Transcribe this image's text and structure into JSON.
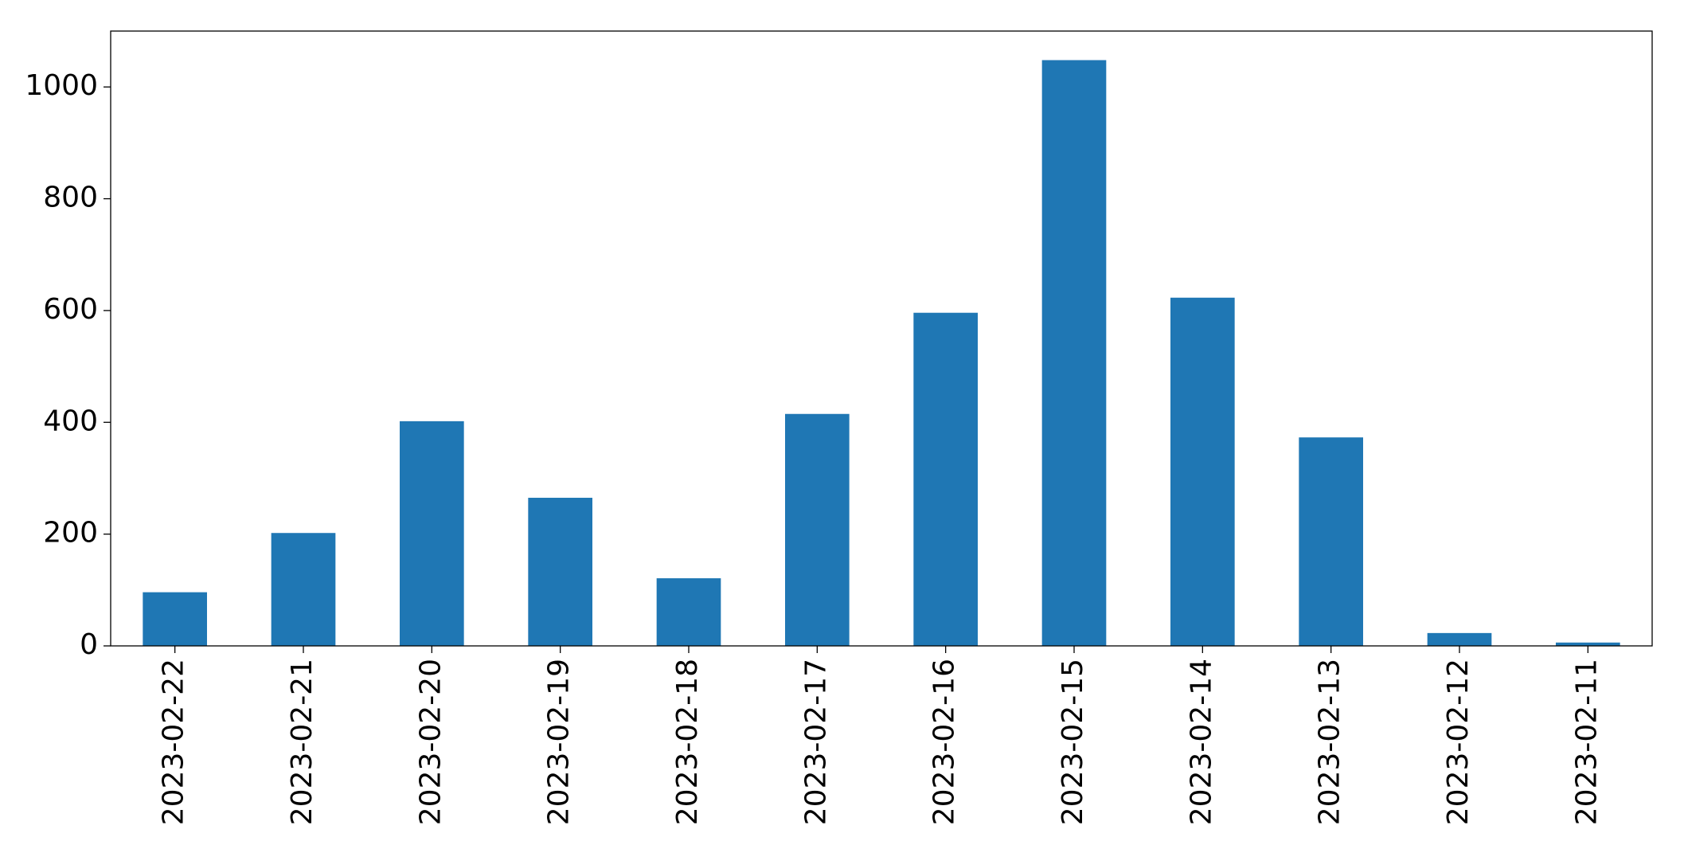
{
  "chart_data": {
    "type": "bar",
    "categories": [
      "2023-02-22",
      "2023-02-21",
      "2023-02-20",
      "2023-02-19",
      "2023-02-18",
      "2023-02-17",
      "2023-02-16",
      "2023-02-15",
      "2023-02-14",
      "2023-02-13",
      "2023-02-12",
      "2023-02-11"
    ],
    "values": [
      96,
      202,
      402,
      265,
      121,
      415,
      596,
      1048,
      623,
      373,
      23,
      6
    ],
    "color": "#1f77b4",
    "ylim": [
      0,
      1100
    ],
    "yticks": [
      0,
      200,
      400,
      600,
      800,
      1000
    ],
    "grid": false
  }
}
